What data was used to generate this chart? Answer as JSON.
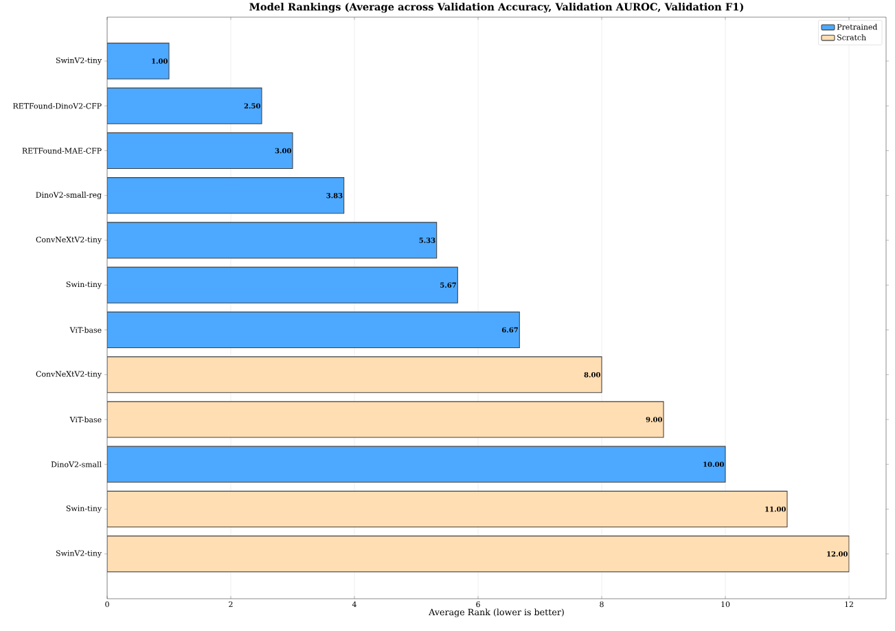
{
  "chart_data": {
    "type": "bar",
    "orientation": "horizontal",
    "title": "Model Rankings (Average across Validation Accuracy, Validation AUROC, Validation F1)",
    "xlabel": "Average Rank (lower is better)",
    "categories": [
      "SwinV2-tiny",
      "RETFound-DinoV2-CFP",
      "RETFound-MAE-CFP",
      "DinoV2-small-reg",
      "ConvNeXtV2-tiny",
      "Swin-tiny",
      "ViT-base",
      "ConvNeXtV2-tiny",
      "ViT-base",
      "DinoV2-small",
      "Swin-tiny",
      "SwinV2-tiny"
    ],
    "series": [
      {
        "name": "Pretrained",
        "color": "#4da9ff",
        "values": [
          1.0,
          2.5,
          3.0,
          3.83,
          5.33,
          5.67,
          6.67,
          null,
          null,
          10.0,
          null,
          null
        ],
        "value_labels": [
          "1.00",
          "2.50",
          "3.00",
          "3.83",
          "5.33",
          "5.67",
          "6.67",
          null,
          null,
          "10.00",
          null,
          null
        ]
      },
      {
        "name": "Scratch",
        "color": "#ffdeb3",
        "values": [
          null,
          null,
          null,
          null,
          null,
          null,
          null,
          8.0,
          9.0,
          null,
          11.0,
          12.0
        ],
        "value_labels": [
          null,
          null,
          null,
          null,
          null,
          null,
          null,
          "8.00",
          "9.00",
          null,
          "11.00",
          "12.00"
        ]
      }
    ],
    "xlim": [
      0,
      12.6
    ],
    "xticks": [
      0,
      2,
      4,
      6,
      8,
      10,
      12
    ],
    "grid": "x",
    "legend": "top right"
  }
}
